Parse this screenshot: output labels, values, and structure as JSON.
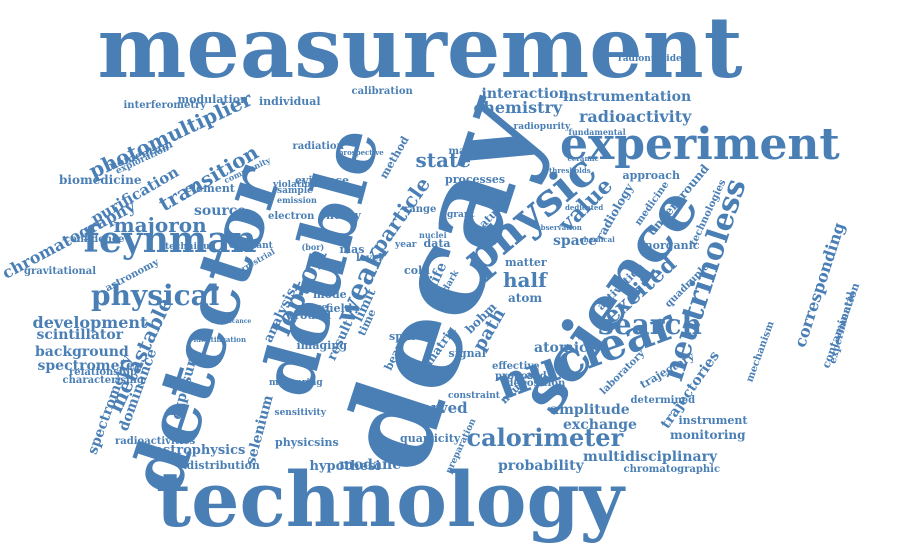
{
  "color": "#4a7fb5",
  "words": [
    "measurement",
    "technology",
    "decay",
    "science",
    "double",
    "detector",
    "experiment",
    "nuclear",
    "neutrinoless",
    "physic",
    "feynman",
    "physical",
    "search",
    "calorimeter",
    "majoron",
    "excited",
    "half",
    "corresponding",
    "photomultiplier",
    "transition",
    "development",
    "state",
    "metastable",
    "value",
    "chemistry",
    "radioactivity",
    "instrumentation",
    "interaction",
    "chromatography",
    "amplitude",
    "probability",
    "multidisciplinary",
    "purification",
    "source",
    "space",
    "atomic",
    "path",
    "weak",
    "particle",
    "lepton",
    "exchange",
    "scintillator",
    "background",
    "spectrometer",
    "spectrometry",
    "dominance",
    "exposure",
    "selenium",
    "astrophysics",
    "modane",
    "observed",
    "hypothesi",
    "trajectories",
    "monitoring",
    "instrument",
    "approach",
    "radiology",
    "inorganic",
    "activation",
    "atom",
    "matter",
    "element",
    "biomedicine",
    "gravitational",
    "confidence",
    "astronomy",
    "interferometry",
    "modulation",
    "individual",
    "calibration",
    "radiopurity",
    "radionuclide",
    "evidence",
    "radiation",
    "method",
    "result",
    "limit",
    "analysis",
    "quarticity",
    "distribution",
    "physicsins",
    "radioactivities",
    "characterising",
    "relationship",
    "chromatographic",
    "determined",
    "contamination",
    "experimental",
    "mechanism",
    "underground",
    "medicine",
    "technologies",
    "material",
    "processes",
    "natural",
    "effective",
    "proposed",
    "deposition",
    "neutron",
    "laboratory",
    "trajectory",
    "quadruple",
    "imaging",
    "ground",
    "field",
    "wave",
    "mode",
    "time",
    "spin",
    "energy",
    "mas",
    "level",
    "cold",
    "data",
    "life",
    "bohm",
    "matrix",
    "beam",
    "sheet",
    "signal",
    "momentum",
    "exploration",
    "community",
    "violation",
    "emission",
    "sample",
    "electron",
    "constant",
    "terrestrial",
    "technique",
    "significance",
    "identification",
    "measuring",
    "preparation",
    "constraint",
    "prospective",
    "(bor)",
    "sensitivity",
    "range",
    "grant",
    "dedicated",
    "observation",
    "ceramic",
    "thresholds",
    "nuclei",
    "fundamental",
    "chemical",
    "year",
    "dark",
    "mixing",
    "fanoux",
    "arisin",
    "measure",
    "different",
    "deposit",
    "possible",
    "tool",
    "spectra",
    "gamma",
    "pulse"
  ]
}
